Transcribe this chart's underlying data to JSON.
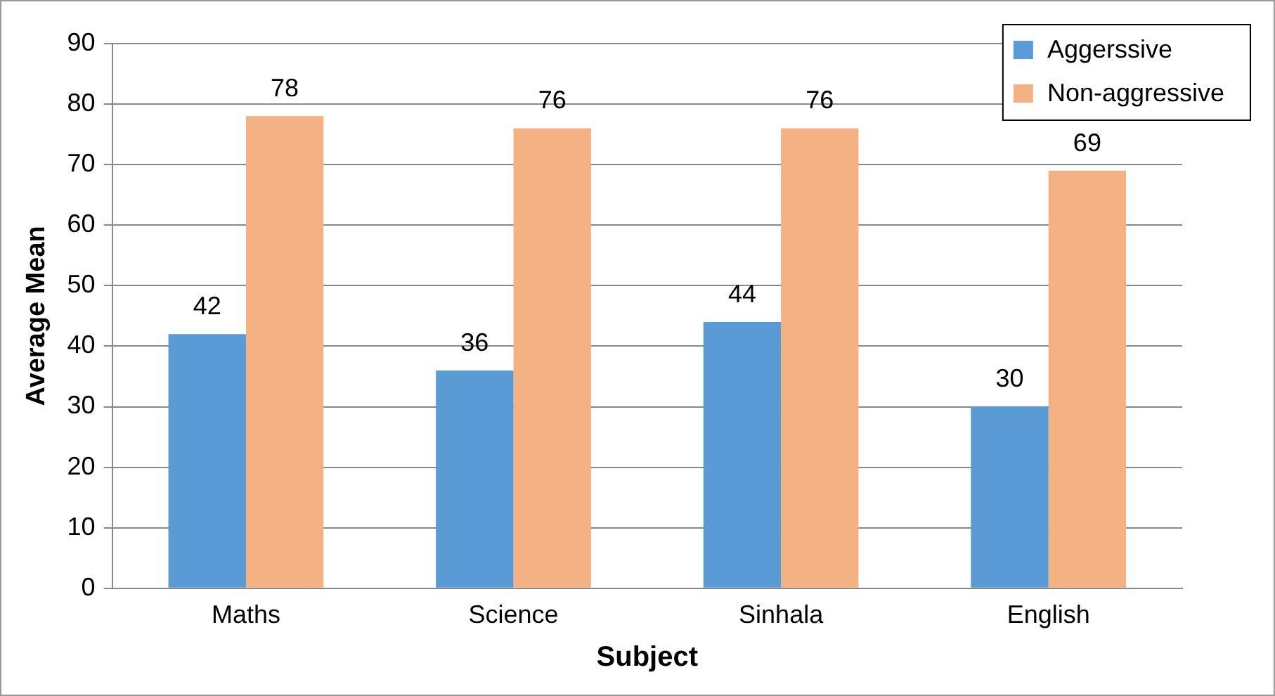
{
  "chart_data": {
    "type": "bar",
    "xlabel": "Subject",
    "ylabel": "Average Mean",
    "categories": [
      "Maths",
      "Science",
      "Sinhala",
      "English"
    ],
    "series": [
      {
        "name": "Aggerssive",
        "color": "#5b9bd5",
        "values": [
          42,
          36,
          44,
          30
        ]
      },
      {
        "name": "Non-aggressive",
        "color": "#f4b183",
        "values": [
          78,
          76,
          76,
          69
        ]
      }
    ],
    "ylim": [
      0,
      90
    ],
    "yticks": [
      0,
      10,
      20,
      30,
      40,
      50,
      60,
      70,
      80,
      90
    ],
    "grid": "y",
    "legend": "top right",
    "data_labels": true
  }
}
